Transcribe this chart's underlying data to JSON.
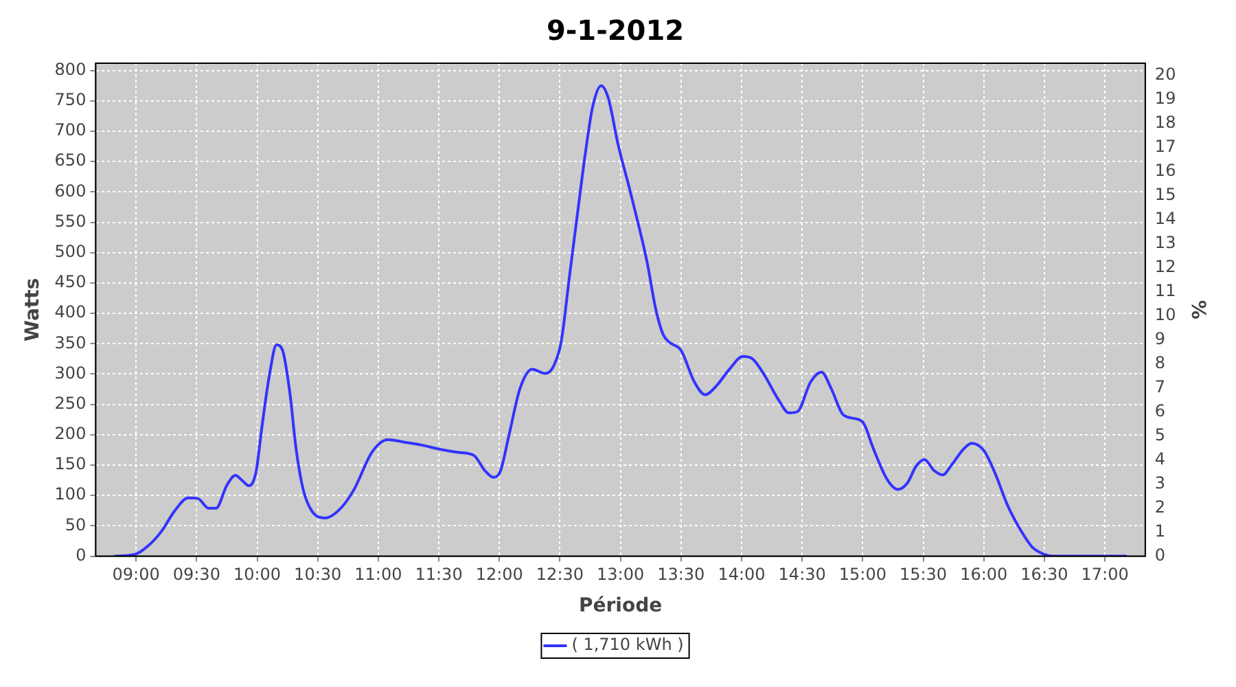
{
  "chart_data": {
    "type": "line",
    "title": "9-1-2012",
    "xlabel": "Période",
    "ylabel": "Watts",
    "y2label": "%",
    "series": [
      {
        "name": "( 1,710 kWh )",
        "color": "#3333ff",
        "x": [
          8.82,
          8.99,
          9.1,
          9.21,
          9.32,
          9.43,
          9.51,
          9.6,
          9.66,
          9.75,
          9.82,
          9.88,
          9.93,
          9.99,
          10.04,
          10.1,
          10.16,
          10.21,
          10.27,
          10.32,
          10.38,
          10.45,
          10.56,
          10.69,
          10.8,
          10.95,
          11.08,
          11.21,
          11.36,
          11.51,
          11.66,
          11.79,
          11.88,
          11.95,
          12.01,
          12.08,
          12.17,
          12.27,
          12.38,
          12.45,
          12.51,
          12.58,
          12.66,
          12.71,
          12.77,
          12.84,
          12.9,
          12.98,
          13.07,
          13.14,
          13.22,
          13.29,
          13.35,
          13.4,
          13.5,
          13.61,
          13.7,
          13.79,
          13.9,
          14.01,
          14.09,
          14.18,
          14.31,
          14.39,
          14.46,
          14.57,
          14.66,
          14.74,
          14.83,
          14.9,
          15.0,
          15.09,
          15.2,
          15.29,
          15.37,
          15.44,
          15.51,
          15.59,
          15.66,
          15.74,
          15.83,
          15.9,
          16.0,
          16.09,
          16.2,
          16.31,
          16.4,
          16.5,
          16.57,
          17.18
        ],
        "values": [
          0,
          3,
          17,
          41,
          75,
          96,
          95,
          79,
          79,
          117,
          133,
          124,
          116,
          138,
          214,
          297,
          348,
          339,
          269,
          179,
          110,
          75,
          63,
          79,
          110,
          172,
          192,
          188,
          183,
          176,
          171,
          166,
          141,
          130,
          141,
          200,
          276,
          308,
          301,
          314,
          353,
          463,
          588,
          664,
          740,
          775,
          754,
          678,
          609,
          553,
          484,
          408,
          366,
          353,
          339,
          287,
          266,
          280,
          308,
          329,
          325,
          301,
          256,
          236,
          238,
          287,
          303,
          276,
          235,
          228,
          221,
          176,
          127,
          110,
          121,
          148,
          159,
          141,
          134,
          152,
          176,
          186,
          174,
          138,
          82,
          41,
          15,
          3,
          0,
          0
        ]
      }
    ],
    "xlim": [
      8.667,
      17.333
    ],
    "xticks": [
      {
        "value": 9,
        "label": "09:00"
      },
      {
        "value": 9.5,
        "label": "09:30"
      },
      {
        "value": 10,
        "label": "10:00"
      },
      {
        "value": 10.5,
        "label": "10:30"
      },
      {
        "value": 11,
        "label": "11:00"
      },
      {
        "value": 11.5,
        "label": "11:30"
      },
      {
        "value": 12,
        "label": "12:00"
      },
      {
        "value": 12.5,
        "label": "12:30"
      },
      {
        "value": 13,
        "label": "13:00"
      },
      {
        "value": 13.5,
        "label": "13:30"
      },
      {
        "value": 14,
        "label": "14:00"
      },
      {
        "value": 14.5,
        "label": "14:30"
      },
      {
        "value": 15,
        "label": "15:00"
      },
      {
        "value": 15.5,
        "label": "15:30"
      },
      {
        "value": 16,
        "label": "16:00"
      },
      {
        "value": 16.5,
        "label": "16:30"
      },
      {
        "value": 17,
        "label": "17:00"
      }
    ],
    "ylim": [
      0,
      812
    ],
    "yticks": [
      0,
      50,
      100,
      150,
      200,
      250,
      300,
      350,
      400,
      450,
      500,
      550,
      600,
      650,
      700,
      750,
      800
    ],
    "y2lim": [
      0,
      20.5
    ],
    "y2ticks": [
      0,
      1,
      2,
      3,
      4,
      5,
      6,
      7,
      8,
      9,
      10,
      11,
      12,
      13,
      14,
      15,
      16,
      17,
      18,
      19,
      20
    ],
    "grid": true,
    "legend": "bottom",
    "marker": "none",
    "line_style": "solid"
  }
}
